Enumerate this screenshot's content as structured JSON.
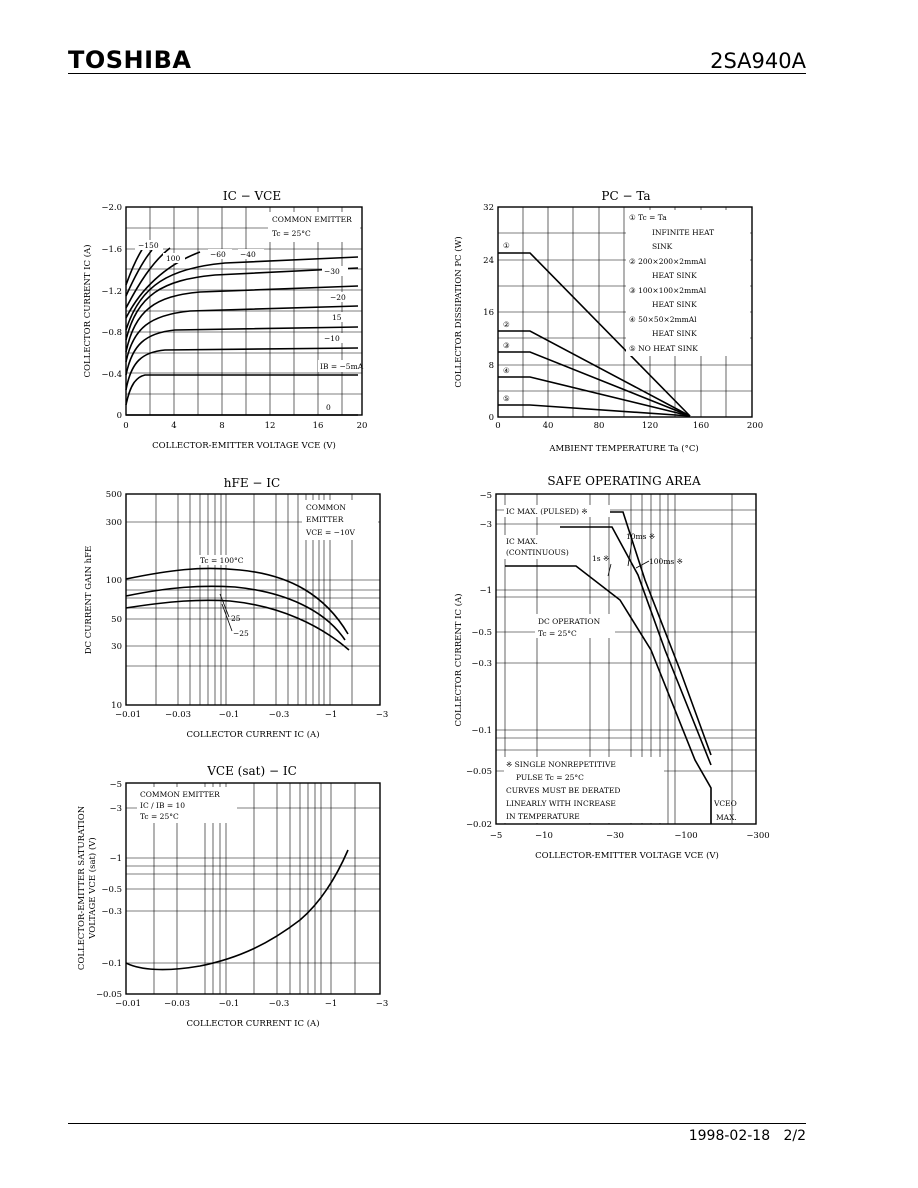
{
  "header": {
    "brand": "TOSHIBA",
    "part_number": "2SA940A"
  },
  "footer": {
    "date": "1998-02-18",
    "page": "2/2"
  },
  "charts": {
    "ic_vce": {
      "title": "IC − VCE",
      "note1": "COMMON EMITTER",
      "note2": "Tc = 25°C",
      "xlabel": "COLLECTOR-EMITTER VOLTAGE   VCE   (V)",
      "ylabel": "COLLECTOR CURRENT   IC   (A)",
      "xticks": [
        "0",
        "4",
        "8",
        "12",
        "16",
        "20"
      ],
      "yticks": [
        "0",
        "−0.4",
        "−0.8",
        "−1.2",
        "−1.6",
        "−2.0"
      ],
      "curve_labels": [
        "−150",
        "100",
        "−60",
        "−40",
        "−30",
        "−20",
        "15",
        "−10",
        "IB = −5mA",
        "0"
      ]
    },
    "pc_ta": {
      "title": "PC − Ta",
      "xlabel": "AMBIENT TEMPERATURE   Ta   (°C)",
      "ylabel": "COLLECTOR DISSIPATION   PC   (W)",
      "xticks": [
        "0",
        "40",
        "80",
        "120",
        "160",
        "200"
      ],
      "yticks": [
        "0",
        "8",
        "16",
        "24",
        "32"
      ],
      "legend": [
        "① Tc = Ta",
        "INFINITE HEAT",
        "SINK",
        "② 200×200×2mmAl",
        "HEAT SINK",
        "③ 100×100×2mmAl",
        "HEAT SINK",
        "④ 50×50×2mmAl",
        "HEAT SINK",
        "⑤ NO HEAT SINK"
      ],
      "markers": [
        "①",
        "②",
        "③",
        "④",
        "⑤"
      ]
    },
    "hfe_ic": {
      "title": "hFE − IC",
      "note1": "COMMON",
      "note2": "EMITTER",
      "note3": "VCE = −10V",
      "xlabel": "COLLECTOR CURRENT   IC   (A)",
      "ylabel": "DC CURRENT GAIN   hFE",
      "xticks": [
        "−0.01",
        "−0.03",
        "−0.1",
        "−0.3",
        "−1",
        "−3"
      ],
      "yticks": [
        "10",
        "30",
        "50",
        "100",
        "300",
        "500"
      ],
      "curve_labels": [
        "Tc = 100°C",
        "25",
        "−25"
      ]
    },
    "vcesat_ic": {
      "title": "VCE (sat) − IC",
      "note1": "COMMON EMITTER",
      "note2": "IC / IB = 10",
      "note3": "Tc = 25°C",
      "xlabel": "COLLECTOR CURRENT   IC   (A)",
      "ylabel1": "COLLECTOR-EMITTER SATURATION",
      "ylabel2": "VOLTAGE   VCE (sat)   (V)",
      "xticks": [
        "−0.01",
        "−0.03",
        "−0.1",
        "−0.3",
        "−1",
        "−3"
      ],
      "yticks": [
        "−0.05",
        "−0.1",
        "−0.3",
        "−0.5",
        "−1",
        "−3",
        "−5"
      ]
    },
    "soa": {
      "title": "SAFE OPERATING AREA",
      "xlabel": "COLLECTOR-EMITTER VOLTAGE   VCE   (V)",
      "ylabel": "COLLECTOR CURRENT   IC   (A)",
      "xticks": [
        "−5",
        "−10",
        "−30",
        "−100",
        "−300"
      ],
      "yticks": [
        "−0.02",
        "−0.05",
        "−0.1",
        "−0.3",
        "−0.5",
        "−1",
        "−3",
        "−5"
      ],
      "label_pulsed": "IC MAX. (PULSED) ※",
      "label_cont1": "IC MAX.",
      "label_cont2": "(CONTINUOUS)",
      "label_10ms": "10ms ※",
      "label_1s": "1s ※",
      "label_100ms": "100ms ※",
      "label_dc1": "DC OPERATION",
      "label_dc2": "Tc = 25°C",
      "note1": "※ SINGLE NONREPETITIVE",
      "note2": "PULSE Tc = 25°C",
      "note3": "CURVES MUST BE DERATED",
      "note4": "LINEARLY WITH INCREASE",
      "note5": "IN TEMPERATURE",
      "vceo1": "VCEO",
      "vceo2": "MAX."
    }
  }
}
